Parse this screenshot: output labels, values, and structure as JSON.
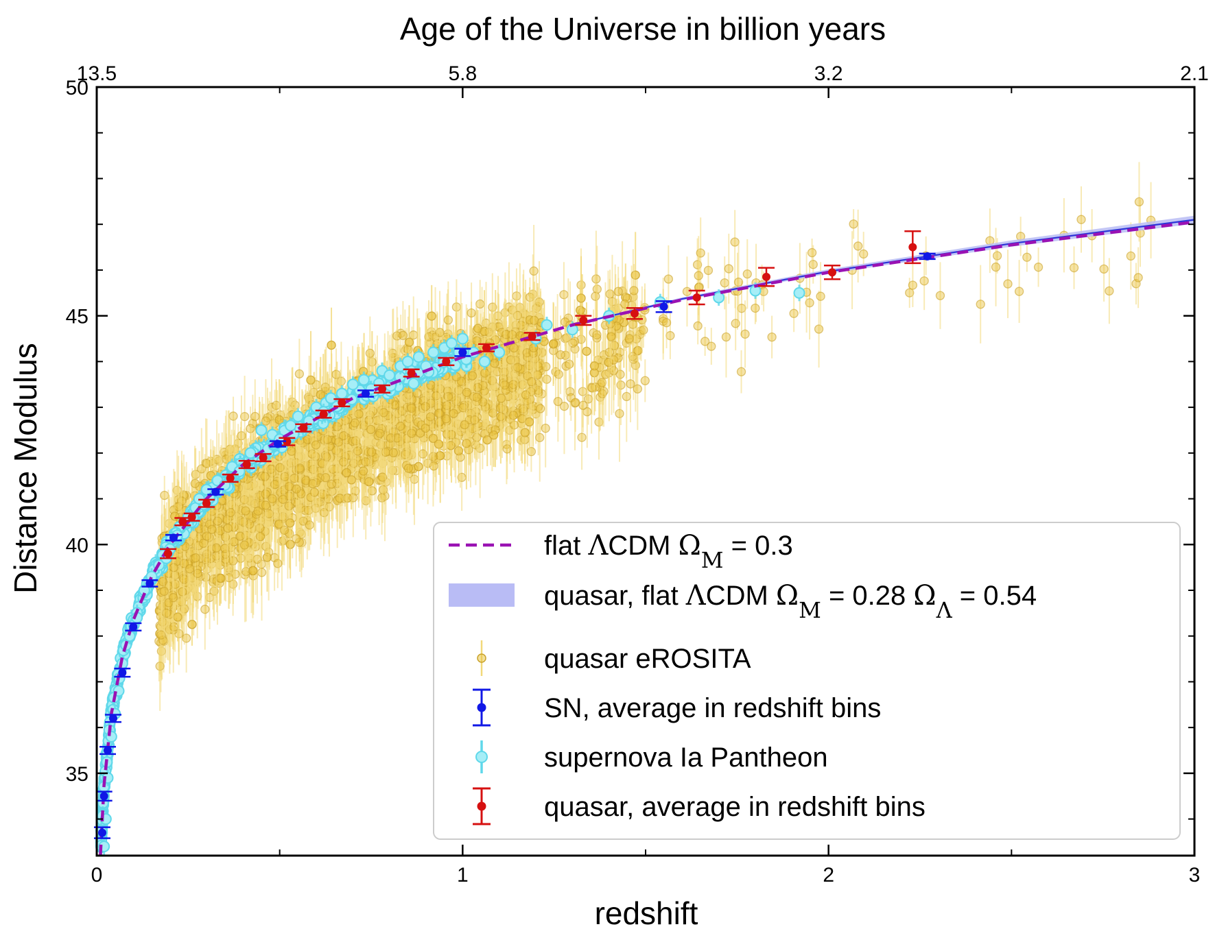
{
  "chart_data": {
    "type": "scatter",
    "title": "Age of the Universe in billion years",
    "xlabel": "redshift",
    "ylabel": "Distance Modulus",
    "xlim": [
      0,
      3
    ],
    "ylim": [
      33.2,
      50
    ],
    "x_ticks": [
      0,
      1,
      2,
      3
    ],
    "x_tick_labels": [
      "0",
      "1",
      "2",
      "3"
    ],
    "y_ticks": [
      35,
      40,
      45,
      50
    ],
    "y_tick_labels": [
      "35",
      "40",
      "45",
      "50"
    ],
    "top_axis": {
      "label": "Age of the Universe in billion years",
      "tick_redshifts": [
        0,
        1,
        2,
        3
      ],
      "tick_labels": [
        "13.5",
        "5.8",
        "3.2",
        "2.1"
      ]
    },
    "legend": {
      "placement": "lower-right",
      "entries": [
        {
          "key": "model",
          "prefix": "flat ",
          "lambda": "Λ",
          "mid": "CDM ",
          "omega": "Ω",
          "sub": "M",
          "suffix": " = 0.3"
        },
        {
          "key": "fit",
          "prefix": "quasar, flat ",
          "lambda": "Λ",
          "mid": "CDM ",
          "omega": "Ω",
          "sub": "M",
          "suffix": " = 0.28 ",
          "omega2": "Ω",
          "sub2": "Λ",
          "suffix2": " = 0.54"
        },
        {
          "key": "quasars",
          "text": "quasar eROSITA"
        },
        {
          "key": "sn_bins",
          "text": "SN, average in redshift bins"
        },
        {
          "key": "pantheon",
          "text": "supernova Ia Pantheon"
        },
        {
          "key": "qso_bins",
          "text": "quasar, average in redshift bins"
        }
      ]
    },
    "colors": {
      "model": "#9a12b3",
      "fit_band": "#b9bcf5",
      "quasar_point": "#e8c23a",
      "quasar_edge": "#c9a22a",
      "quasar_err": "#f2d87a",
      "sn_bins": "#1018e6",
      "pantheon_face": "#a6eef7",
      "pantheon_edge": "#5fd8ea",
      "qso_bins": "#d61010"
    },
    "series": [
      {
        "name": "SN, average in redshift bins",
        "x": [
          0.015,
          0.02,
          0.03,
          0.045,
          0.07,
          0.1,
          0.145,
          0.21,
          0.325,
          0.495,
          0.735,
          1.0,
          1.55,
          2.27
        ],
        "y": [
          33.7,
          34.5,
          35.5,
          36.2,
          37.2,
          38.2,
          39.15,
          40.15,
          41.15,
          42.2,
          43.3,
          44.2,
          45.2,
          46.3
        ],
        "yerr": [
          0.12,
          0.1,
          0.08,
          0.08,
          0.09,
          0.08,
          0.07,
          0.06,
          0.06,
          0.06,
          0.07,
          0.08,
          0.12,
          0.06
        ]
      },
      {
        "name": "quasar, average in redshift bins",
        "x": [
          0.195,
          0.235,
          0.26,
          0.3,
          0.365,
          0.41,
          0.455,
          0.52,
          0.565,
          0.62,
          0.67,
          0.78,
          0.86,
          0.955,
          1.065,
          1.19,
          1.33,
          1.47,
          1.64,
          1.83,
          2.01,
          2.23
        ],
        "y": [
          39.8,
          40.5,
          40.6,
          40.9,
          41.45,
          41.75,
          41.9,
          42.25,
          42.55,
          42.85,
          43.1,
          43.4,
          43.75,
          44.0,
          44.3,
          44.55,
          44.9,
          45.05,
          45.4,
          45.85,
          45.95,
          46.5
        ],
        "yerr": [
          0.1,
          0.08,
          0.08,
          0.08,
          0.08,
          0.08,
          0.08,
          0.08,
          0.08,
          0.08,
          0.08,
          0.08,
          0.08,
          0.08,
          0.08,
          0.08,
          0.1,
          0.12,
          0.15,
          0.2,
          0.15,
          0.35
        ]
      },
      {
        "name": "supernova Ia Pantheon",
        "x": [
          0.02,
          0.025,
          0.03,
          0.04,
          0.05,
          0.06,
          0.07,
          0.08,
          0.09,
          0.11,
          0.13,
          0.15,
          0.17,
          0.19,
          0.2,
          0.22,
          0.25,
          0.27,
          0.28,
          0.3,
          0.33,
          0.35,
          0.37,
          0.39,
          0.42,
          0.45,
          0.48,
          0.5,
          0.53,
          0.55,
          0.58,
          0.6,
          0.62,
          0.64,
          0.67,
          0.7,
          0.73,
          0.75,
          0.78,
          0.8,
          0.83,
          0.85,
          0.88,
          0.9,
          0.92,
          0.95,
          0.97,
          1.0,
          1.03,
          1.06,
          1.1,
          1.2,
          1.23,
          1.3,
          1.4,
          1.54,
          1.7,
          1.8,
          1.92
        ],
        "y": [
          33.4,
          34.0,
          34.9,
          35.8,
          36.3,
          36.8,
          37.4,
          37.8,
          38.0,
          38.4,
          39.0,
          39.3,
          39.55,
          39.7,
          39.9,
          40.2,
          40.6,
          40.8,
          41.0,
          41.2,
          41.4,
          41.3,
          41.7,
          41.6,
          42.0,
          42.5,
          42.4,
          42.3,
          42.6,
          42.8,
          42.7,
          43.0,
          42.9,
          43.2,
          43.3,
          43.5,
          43.6,
          43.4,
          43.8,
          43.7,
          43.9,
          44.0,
          44.1,
          43.9,
          44.2,
          44.3,
          44.4,
          44.5,
          44.2,
          44.0,
          44.2,
          44.5,
          44.8,
          44.7,
          45.0,
          45.3,
          45.4,
          45.55,
          45.5
        ]
      },
      {
        "name": "flat ΛCDM ΩM = 0.3",
        "x": [
          0.01,
          0.02,
          0.04,
          0.07,
          0.1,
          0.15,
          0.2,
          0.3,
          0.4,
          0.5,
          0.7,
          1.0,
          1.3,
          1.6,
          2.0,
          2.5,
          3.0
        ],
        "y": [
          33.2,
          34.75,
          36.3,
          37.55,
          38.35,
          39.3,
          40.0,
          41.0,
          41.75,
          42.3,
          43.2,
          44.1,
          44.8,
          45.35,
          45.95,
          46.55,
          47.05
        ]
      },
      {
        "name": "quasar, flat ΛCDM ΩM = 0.28 ΩΛ = 0.54",
        "x": [
          1.3,
          1.6,
          2.0,
          2.5,
          3.0
        ],
        "y": [
          44.8,
          45.37,
          45.97,
          46.58,
          47.1
        ]
      }
    ]
  }
}
